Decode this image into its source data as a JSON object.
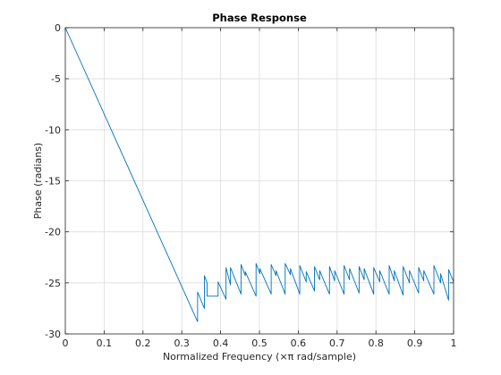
{
  "chart_data": {
    "type": "line",
    "title": "Phase Response",
    "xlabel": "Normalized Frequency  (×π rad/sample)",
    "ylabel": "Phase (radians)",
    "xlim": [
      0,
      1
    ],
    "ylim": [
      -30,
      0
    ],
    "grid": true,
    "x_ticks": [
      "0",
      "0.1",
      "0.2",
      "0.3",
      "0.4",
      "0.5",
      "0.6",
      "0.7",
      "0.8",
      "0.9",
      "1"
    ],
    "y_ticks": [
      "0",
      "-5",
      "-10",
      "-15",
      "-20",
      "-25",
      "-30"
    ],
    "series": [
      {
        "color": "#0072bd",
        "x": [
          0,
          0.3407,
          0.3407,
          0.3582,
          0.3582,
          0.3652,
          0.3652,
          0.3935,
          0.3935,
          0.4139,
          0.4139,
          0.4254,
          0.4254,
          0.4526,
          0.4526,
          0.4636,
          0.4636,
          0.4913,
          0.4913,
          0.5011,
          0.5011,
          0.5302,
          0.5302,
          0.5428,
          0.5428,
          0.5663,
          0.5663,
          0.5798,
          0.5798,
          0.6039,
          0.6039,
          0.6205,
          0.6205,
          0.6418,
          0.6418,
          0.6551,
          0.6551,
          0.6804,
          0.6804,
          0.6937,
          0.6937,
          0.718,
          0.718,
          0.7321,
          0.7321,
          0.7567,
          0.7567,
          0.7697,
          0.7697,
          0.7943,
          0.7943,
          0.8098,
          0.8098,
          0.8341,
          0.8341,
          0.8473,
          0.8473,
          0.87,
          0.87,
          0.8864,
          0.8864,
          0.91,
          0.91,
          0.9232,
          0.9232,
          0.9493,
          0.9493,
          0.9666,
          0.9666,
          0.9871,
          0.9871,
          1.0
        ],
        "y": [
          0,
          -28.8,
          -25.9,
          -27.5,
          -24.3,
          -25.0,
          -26.3,
          -26.3,
          -24.9,
          -26.6,
          -23.5,
          -25.2,
          -23.5,
          -26.1,
          -23.2,
          -24.3,
          -23.9,
          -26.3,
          -23.1,
          -24.1,
          -23.6,
          -26.1,
          -23.2,
          -24.3,
          -23.8,
          -26.1,
          -23.1,
          -24.2,
          -23.6,
          -26.1,
          -23.3,
          -24.9,
          -23.9,
          -25.8,
          -23.4,
          -24.7,
          -23.8,
          -26.1,
          -23.4,
          -24.8,
          -23.8,
          -26.1,
          -23.3,
          -24.7,
          -23.6,
          -26.0,
          -23.4,
          -24.7,
          -23.6,
          -26.1,
          -23.5,
          -24.9,
          -23.8,
          -26.1,
          -23.3,
          -24.8,
          -23.8,
          -26.2,
          -23.4,
          -25.0,
          -23.8,
          -26.0,
          -23.5,
          -24.8,
          -23.8,
          -26.1,
          -23.3,
          -25.0,
          -24.1,
          -26.7,
          -23.7,
          -24.9
        ]
      }
    ]
  }
}
